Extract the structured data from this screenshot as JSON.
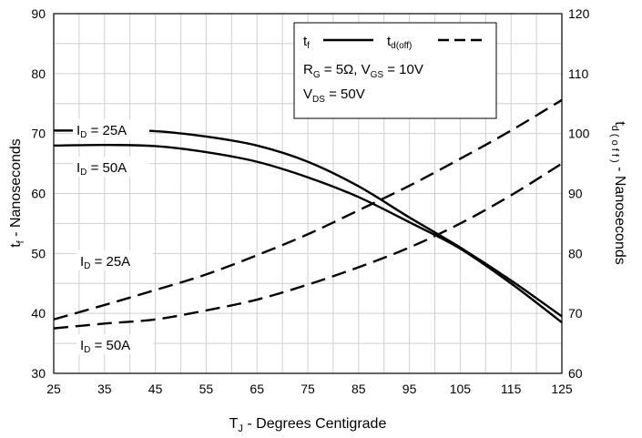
{
  "chart_data": {
    "type": "line",
    "x_axis": {
      "label_main": "T",
      "label_sub": "J",
      "label_rest": " - Degrees Centigrade",
      "range": [
        25,
        125
      ],
      "ticks": [
        "25",
        "35",
        "45",
        "55",
        "65",
        "75",
        "85",
        "95",
        "105",
        "115",
        "125"
      ],
      "minor_step": 5
    },
    "y_left": {
      "label_main": "t",
      "label_sub": "f",
      "label_rest": " - Nanoseconds",
      "range": [
        30,
        90
      ],
      "ticks": [
        "30",
        "40",
        "50",
        "60",
        "70",
        "80",
        "90"
      ],
      "minor_step": 5
    },
    "y_right": {
      "label_main": "t",
      "label_sub": "d ( o f f )",
      "label_rest": " - Nanoseconds",
      "range": [
        60,
        120
      ],
      "ticks": [
        "60",
        "70",
        "80",
        "90",
        "100",
        "110",
        "120"
      ]
    },
    "grid": true,
    "legend": {
      "position": "top-right",
      "tf_label": "t",
      "tf_sub": "f",
      "td_label": "t",
      "td_sub": "d(off)",
      "cond1_a": "R",
      "cond1_a_sub": "G",
      "cond1_b": " = 5Ω,  V",
      "cond1_b_sub": "GS",
      "cond1_c": " = 10V",
      "cond2_a": "V",
      "cond2_a_sub": "DS",
      "cond2_b": " = 50V"
    },
    "annotations": [
      {
        "main": "I",
        "sub": "D",
        "rest": " = 25A"
      },
      {
        "main": "I",
        "sub": "D",
        "rest": " = 50A"
      },
      {
        "main": "I",
        "sub": "D",
        "rest": " = 25A"
      },
      {
        "main": "I",
        "sub": "D",
        "rest": " = 50A"
      }
    ],
    "series": [
      {
        "id": "tf_25A",
        "axis": "left",
        "style": "solid",
        "x": [
          25,
          35,
          45,
          55,
          65,
          75,
          85,
          95,
          105,
          115,
          125
        ],
        "y": [
          70.5,
          70.5,
          70.4,
          69.5,
          68,
          65.3,
          61.2,
          56,
          51,
          45.5,
          39.5
        ]
      },
      {
        "id": "tf_50A",
        "axis": "left",
        "style": "solid",
        "x": [
          25,
          35,
          45,
          55,
          65,
          75,
          85,
          95,
          105,
          115,
          125
        ],
        "y": [
          68,
          68.1,
          67.9,
          66.9,
          65.3,
          62.7,
          59.4,
          55.2,
          50.8,
          45,
          38.5
        ]
      },
      {
        "id": "tdoff_25A",
        "axis": "right",
        "style": "dashed",
        "x": [
          25,
          35,
          45,
          55,
          65,
          75,
          85,
          95,
          105,
          115,
          125
        ],
        "y": [
          69,
          71.4,
          73.9,
          76.5,
          79.7,
          83.2,
          87.2,
          91.3,
          95.8,
          100.5,
          105.6
        ]
      },
      {
        "id": "tdoff_50A",
        "axis": "right",
        "style": "dashed",
        "x": [
          25,
          35,
          45,
          55,
          65,
          75,
          85,
          95,
          105,
          115,
          125
        ],
        "y": [
          67.5,
          68.3,
          69,
          70.5,
          72.3,
          74.8,
          77.7,
          81,
          85,
          89.7,
          95
        ]
      }
    ]
  }
}
